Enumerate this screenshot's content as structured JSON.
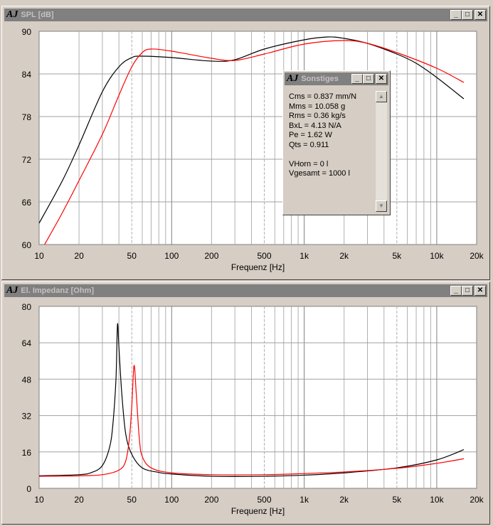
{
  "windows": [
    {
      "title": "SPL [dB]",
      "xlabel": "Frequenz [Hz]",
      "yticks": [
        "90",
        "84",
        "78",
        "72",
        "66",
        "60"
      ],
      "ymin": 60,
      "ymax": 90
    },
    {
      "title": "El. Impedanz [Ohm]",
      "xlabel": "Frequenz [Hz]",
      "yticks": [
        "80",
        "64",
        "48",
        "32",
        "16",
        "0"
      ],
      "ymin": 0,
      "ymax": 80
    }
  ],
  "xticks": [
    {
      "f": 10,
      "label": "10"
    },
    {
      "f": 20,
      "label": "20"
    },
    {
      "f": 50,
      "label": "50"
    },
    {
      "f": 100,
      "label": "100"
    },
    {
      "f": 200,
      "label": "200"
    },
    {
      "f": 500,
      "label": "500"
    },
    {
      "f": 1000,
      "label": "1k"
    },
    {
      "f": 2000,
      "label": "2k"
    },
    {
      "f": 5000,
      "label": "5k"
    },
    {
      "f": 10000,
      "label": "10k"
    },
    {
      "f": 20000,
      "label": "20k"
    }
  ],
  "popup": {
    "title": "Sonstiges",
    "lines": [
      "Cms = 0.837 mm/N",
      "Mms = 10.058 g",
      "Rms = 0.36 kg/s",
      "BxL = 4.13 N/A",
      "Pe = 1.62 W",
      "Qts = 0.911",
      "",
      "VHorn = 0 l",
      "Vgesamt = 1000 l"
    ]
  },
  "logo": "AJ",
  "chart_data": [
    {
      "type": "line",
      "title": "SPL [dB]",
      "xlabel": "Frequenz [Hz]",
      "ylabel": "dB",
      "xscale": "log",
      "xlim": [
        10,
        20000
      ],
      "ylim": [
        60,
        90
      ],
      "grid": true,
      "series": [
        {
          "name": "black",
          "color": "#000000",
          "points": [
            [
              10,
              63
            ],
            [
              15,
              69
            ],
            [
              20,
              74
            ],
            [
              30,
              81.5
            ],
            [
              40,
              85
            ],
            [
              50,
              86.3
            ],
            [
              60,
              86.5
            ],
            [
              100,
              86.3
            ],
            [
              200,
              85.8
            ],
            [
              300,
              86
            ],
            [
              500,
              87.5
            ],
            [
              1000,
              88.8
            ],
            [
              1500,
              89.2
            ],
            [
              2000,
              89
            ],
            [
              3000,
              88.3
            ],
            [
              5000,
              86.8
            ],
            [
              7000,
              85.5
            ],
            [
              10000,
              83.5
            ],
            [
              16000,
              80.5
            ]
          ]
        },
        {
          "name": "red",
          "color": "#ff0000",
          "points": [
            [
              11,
              60
            ],
            [
              15,
              64.5
            ],
            [
              20,
              69
            ],
            [
              30,
              75.5
            ],
            [
              40,
              81
            ],
            [
              50,
              85
            ],
            [
              60,
              87
            ],
            [
              70,
              87.5
            ],
            [
              100,
              87.2
            ],
            [
              200,
              86.2
            ],
            [
              300,
              85.9
            ],
            [
              500,
              86.8
            ],
            [
              1000,
              88.2
            ],
            [
              2000,
              88.7
            ],
            [
              3000,
              88.3
            ],
            [
              5000,
              87
            ],
            [
              10000,
              84.8
            ],
            [
              16000,
              82.8
            ]
          ]
        }
      ]
    },
    {
      "type": "line",
      "title": "El. Impedanz [Ohm]",
      "xlabel": "Frequenz [Hz]",
      "ylabel": "Ohm",
      "xscale": "log",
      "xlim": [
        10,
        20000
      ],
      "ylim": [
        0,
        80
      ],
      "grid": true,
      "series": [
        {
          "name": "black",
          "color": "#000000",
          "points": [
            [
              10,
              5.5
            ],
            [
              20,
              6
            ],
            [
              25,
              7
            ],
            [
              30,
              10
            ],
            [
              34,
              18
            ],
            [
              36,
              28
            ],
            [
              38,
              48
            ],
            [
              39,
              72
            ],
            [
              40,
              62
            ],
            [
              42,
              42
            ],
            [
              45,
              24
            ],
            [
              50,
              15
            ],
            [
              60,
              9
            ],
            [
              80,
              7
            ],
            [
              100,
              6.3
            ],
            [
              200,
              5.3
            ],
            [
              500,
              5.3
            ],
            [
              1000,
              5.8
            ],
            [
              2000,
              6.8
            ],
            [
              5000,
              9
            ],
            [
              10000,
              12.5
            ],
            [
              16000,
              17
            ]
          ]
        },
        {
          "name": "red",
          "color": "#ff0000",
          "points": [
            [
              10,
              5.3
            ],
            [
              20,
              5.5
            ],
            [
              30,
              6
            ],
            [
              40,
              8
            ],
            [
              45,
              12
            ],
            [
              48,
              22
            ],
            [
              50,
              36
            ],
            [
              52,
              54
            ],
            [
              54,
              42
            ],
            [
              57,
              22
            ],
            [
              60,
              14
            ],
            [
              70,
              9
            ],
            [
              100,
              6.8
            ],
            [
              200,
              6
            ],
            [
              500,
              6
            ],
            [
              1000,
              6.5
            ],
            [
              2000,
              7.2
            ],
            [
              5000,
              8.8
            ],
            [
              10000,
              11
            ],
            [
              16000,
              13
            ]
          ]
        }
      ]
    }
  ]
}
